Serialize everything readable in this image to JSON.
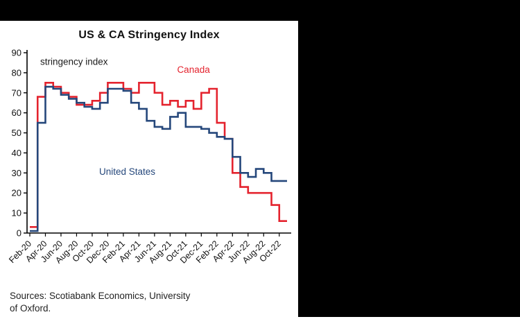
{
  "page": {
    "title": "US & CA Stringency Index"
  },
  "source_note": {
    "lines": [
      "Sources: Scotiabank Economics, University",
      "of Oxford."
    ]
  },
  "chart_data": {
    "type": "line",
    "title": "US & CA Stringency Index",
    "inner_axis_label": "stringency index",
    "ylim": [
      0,
      90
    ],
    "ytick_step": 10,
    "grid": false,
    "legend_position": "inline-labels",
    "x": [
      "Feb-20",
      "Mar-20",
      "Apr-20",
      "May-20",
      "Jun-20",
      "Jul-20",
      "Aug-20",
      "Sep-20",
      "Oct-20",
      "Nov-20",
      "Dec-20",
      "Jan-21",
      "Feb-21",
      "Mar-21",
      "Apr-21",
      "May-21",
      "Jun-21",
      "Jul-21",
      "Aug-21",
      "Sep-21",
      "Oct-21",
      "Nov-21",
      "Dec-21",
      "Jan-22",
      "Feb-22",
      "Mar-22",
      "Apr-22",
      "May-22",
      "Jun-22",
      "Jul-22",
      "Aug-22",
      "Sep-22",
      "Oct-22",
      "Nov-22"
    ],
    "x_tick_labels": [
      "Feb-20",
      "Apr-20",
      "Jun-20",
      "Aug-20",
      "Oct-20",
      "Dec-20",
      "Feb-21",
      "Apr-21",
      "Jun-21",
      "Aug-21",
      "Oct-21",
      "Dec-21",
      "Feb-22",
      "Apr-22",
      "Jun-22",
      "Aug-22",
      "Oct-22"
    ],
    "series": [
      {
        "name": "Canada",
        "color": "#e4232e",
        "values": [
          3,
          68,
          75,
          73,
          70,
          68,
          64,
          64,
          66,
          70,
          75,
          75,
          72,
          70,
          75,
          75,
          70,
          64,
          66,
          63,
          66,
          62,
          70,
          72,
          55,
          47,
          30,
          23,
          20,
          20,
          20,
          14,
          6,
          6
        ]
      },
      {
        "name": "United States",
        "color": "#25477b",
        "values": [
          1,
          55,
          73,
          72,
          69,
          67,
          65,
          63,
          62,
          65,
          72,
          72,
          71,
          65,
          62,
          56,
          53,
          52,
          58,
          60,
          53,
          53,
          52,
          50,
          48,
          47,
          38,
          30,
          28,
          32,
          30,
          26,
          26,
          26
        ]
      }
    ],
    "annotations": [
      {
        "text": "Canada",
        "color": "#e4232e",
        "x_index": 21,
        "value": 80
      },
      {
        "text": "United States",
        "color": "#25477b",
        "x_index": 12.5,
        "value": 29
      }
    ],
    "source": "Sources: Scotiabank Economics, University of Oxford."
  }
}
